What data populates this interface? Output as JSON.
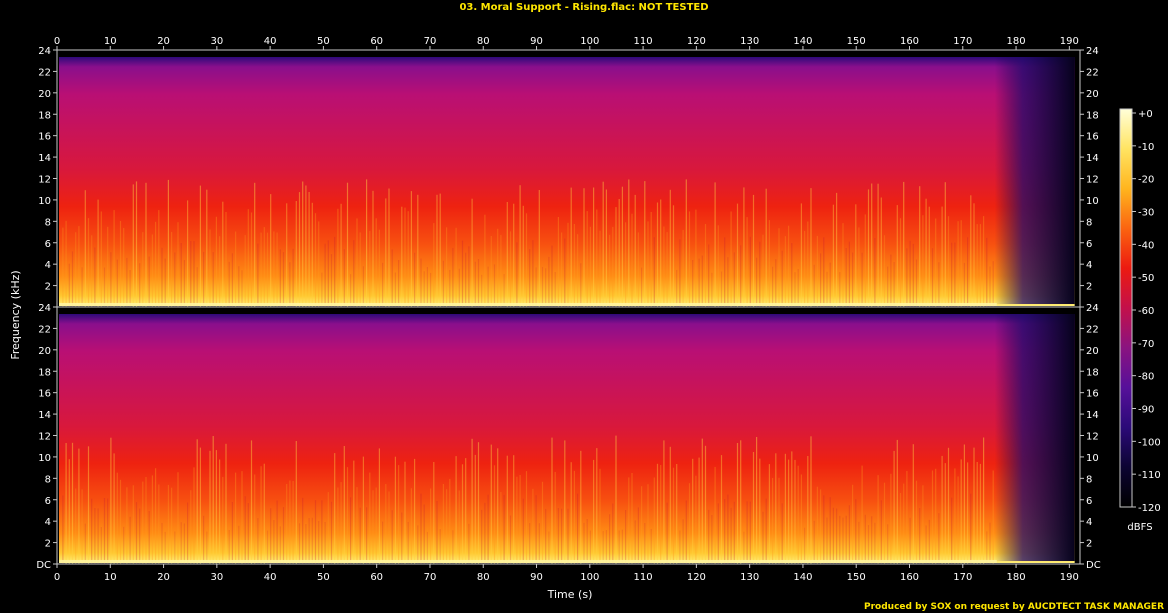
{
  "header": {
    "title": "03. Moral Support - Rising.flac: NOT TESTED"
  },
  "footer": {
    "credit": "Produced by SOX on request by AUCDTECT TASK MANAGER"
  },
  "colors": {
    "title": "#ffe700",
    "credit": "#ffe700",
    "axis_text": "#ffffff",
    "frame": "#c8c8c8",
    "background": "#000000"
  },
  "chart_data": {
    "type": "heatmap",
    "subtype": "spectrogram",
    "title": "03. Moral Support - Rising.flac: NOT TESTED",
    "xlabel": "Time (s)",
    "ylabel": "Frequency (kHz)",
    "xlim": [
      0,
      192
    ],
    "ylim": [
      0,
      24
    ],
    "x_ticks": [
      0,
      10,
      20,
      30,
      40,
      50,
      60,
      70,
      80,
      90,
      100,
      110,
      120,
      130,
      140,
      150,
      160,
      170,
      180,
      190
    ],
    "y_ticks": [
      {
        "value": 0,
        "label": "DC"
      },
      {
        "value": 2,
        "label": "2"
      },
      {
        "value": 4,
        "label": "4"
      },
      {
        "value": 6,
        "label": "6"
      },
      {
        "value": 8,
        "label": "8"
      },
      {
        "value": 10,
        "label": "10"
      },
      {
        "value": 12,
        "label": "12"
      },
      {
        "value": 14,
        "label": "14"
      },
      {
        "value": 16,
        "label": "16"
      },
      {
        "value": 18,
        "label": "18"
      },
      {
        "value": 20,
        "label": "20"
      },
      {
        "value": 22,
        "label": "22"
      },
      {
        "value": 24,
        "label": "24"
      }
    ],
    "channels": [
      {
        "name": "top",
        "fade_start_s": 176,
        "end_s": 191
      },
      {
        "name": "bottom",
        "fade_start_s": 176,
        "end_s": 191
      }
    ],
    "colorbar": {
      "label": "dBFS",
      "range": [
        -120,
        0
      ],
      "ticks": [
        "+0",
        "-10",
        "-20",
        "-30",
        "-40",
        "-50",
        "-60",
        "-70",
        "-80",
        "-90",
        "-100",
        "-110",
        "-120"
      ],
      "colormap": [
        "#000000",
        "#0c0432",
        "#2b0a78",
        "#56109a",
        "#8a1380",
        "#c3104a",
        "#ec1a10",
        "#fb6410",
        "#ffb51e",
        "#ffe462",
        "#ffffd8"
      ]
    },
    "grid": false,
    "legend_position": "right"
  }
}
